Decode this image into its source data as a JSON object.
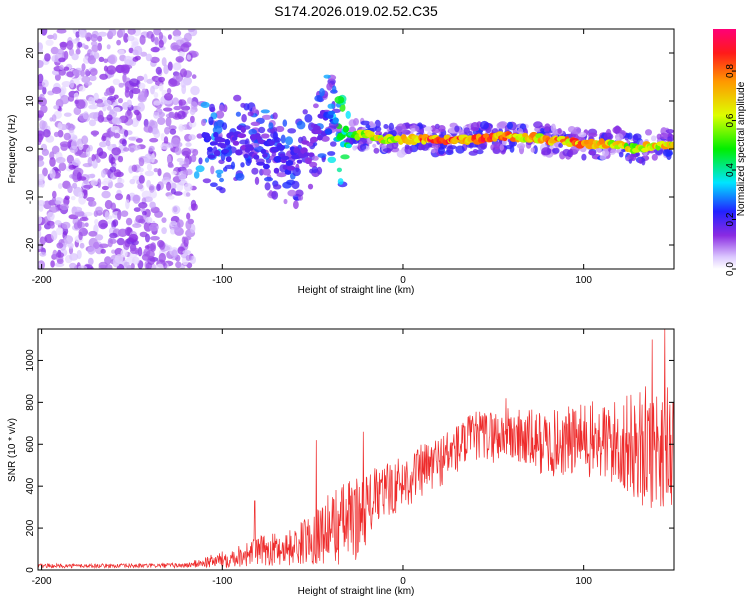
{
  "title": "S174.2026.019.02.52.C35",
  "chart_data": [
    {
      "type": "heatmap",
      "name": "spectrogram",
      "xlabel": "Height of straight line (km)",
      "ylabel": "Frequency (Hz)",
      "xlim": [
        -202,
        150
      ],
      "ylim": [
        -25,
        25
      ],
      "xticks": [
        -200,
        -100,
        0,
        100
      ],
      "yticks": [
        -20,
        -10,
        0,
        10,
        20
      ],
      "colorbar": {
        "label": "Normalized spectral amplitude",
        "range": [
          0,
          0.97
        ],
        "ticks": [
          0.0,
          0.2,
          0.4,
          0.6,
          0.8
        ],
        "tick_labels": [
          "0.0",
          "0.2",
          "0.4",
          "0.6",
          "0.8"
        ]
      },
      "ridge": [
        {
          "x": -110,
          "y": 2,
          "amp": 0.25
        },
        {
          "x": -100,
          "y": 0,
          "amp": 0.22
        },
        {
          "x": -90,
          "y": 2,
          "amp": 0.18
        },
        {
          "x": -80,
          "y": 0,
          "amp": 0.2
        },
        {
          "x": -70,
          "y": -2,
          "amp": 0.22
        },
        {
          "x": -60,
          "y": -3,
          "amp": 0.2
        },
        {
          "x": -50,
          "y": 0,
          "amp": 0.15
        },
        {
          "x": -45,
          "y": 5,
          "amp": 0.2
        },
        {
          "x": -40,
          "y": 7,
          "amp": 0.25
        },
        {
          "x": -35,
          "y": 1,
          "amp": 0.45
        },
        {
          "x": -30,
          "y": 3,
          "amp": 0.45
        },
        {
          "x": -20,
          "y": 3,
          "amp": 0.7
        },
        {
          "x": -10,
          "y": 2,
          "amp": 0.7
        },
        {
          "x": 0,
          "y": 2,
          "amp": 0.75
        },
        {
          "x": 10,
          "y": 2,
          "amp": 0.85
        },
        {
          "x": 20,
          "y": 2,
          "amp": 0.9
        },
        {
          "x": 30,
          "y": 2,
          "amp": 0.85
        },
        {
          "x": 40,
          "y": 2,
          "amp": 0.85
        },
        {
          "x": 50,
          "y": 2.5,
          "amp": 0.9
        },
        {
          "x": 60,
          "y": 2.5,
          "amp": 0.8
        },
        {
          "x": 70,
          "y": 2.5,
          "amp": 0.75
        },
        {
          "x": 80,
          "y": 2,
          "amp": 0.8
        },
        {
          "x": 90,
          "y": 1.5,
          "amp": 0.8
        },
        {
          "x": 100,
          "y": 1,
          "amp": 0.85
        },
        {
          "x": 110,
          "y": 1,
          "amp": 0.75
        },
        {
          "x": 120,
          "y": 1,
          "amp": 0.7
        },
        {
          "x": 130,
          "y": 0,
          "amp": 0.7
        },
        {
          "x": 140,
          "y": 1,
          "amp": 0.75
        },
        {
          "x": 150,
          "y": 1,
          "amp": 0.7
        }
      ],
      "noise_region": {
        "x": [
          -202,
          -115
        ],
        "y": [
          -25,
          25
        ],
        "amp": 0.12
      }
    },
    {
      "type": "line",
      "name": "snr",
      "series": [
        {
          "name": "SNR",
          "color": "#ee2b2b"
        }
      ],
      "xlabel": "Height of straight line (km)",
      "ylabel": "SNR (10 * v/v)",
      "xlim": [
        -202,
        150
      ],
      "ylim": [
        0,
        1150
      ],
      "xticks": [
        -200,
        -100,
        0,
        100
      ],
      "yticks": [
        0,
        200,
        400,
        600,
        800,
        1000
      ],
      "envelope": [
        {
          "x": -202,
          "mean": 20,
          "spread": 10
        },
        {
          "x": -150,
          "mean": 20,
          "spread": 10
        },
        {
          "x": -120,
          "mean": 22,
          "spread": 12
        },
        {
          "x": -100,
          "mean": 50,
          "spread": 40
        },
        {
          "x": -80,
          "mean": 90,
          "spread": 70
        },
        {
          "x": -60,
          "mean": 110,
          "spread": 90
        },
        {
          "x": -45,
          "mean": 180,
          "spread": 150
        },
        {
          "x": -35,
          "mean": 220,
          "spread": 200
        },
        {
          "x": -25,
          "mean": 250,
          "spread": 200
        },
        {
          "x": -15,
          "mean": 350,
          "spread": 140
        },
        {
          "x": 0,
          "mean": 420,
          "spread": 130
        },
        {
          "x": 20,
          "mean": 520,
          "spread": 130
        },
        {
          "x": 40,
          "mean": 640,
          "spread": 120
        },
        {
          "x": 60,
          "mean": 640,
          "spread": 140
        },
        {
          "x": 80,
          "mean": 600,
          "spread": 160
        },
        {
          "x": 100,
          "mean": 620,
          "spread": 180
        },
        {
          "x": 120,
          "mean": 600,
          "spread": 220
        },
        {
          "x": 135,
          "mean": 580,
          "spread": 300
        },
        {
          "x": 150,
          "mean": 600,
          "spread": 300
        }
      ],
      "peaks": [
        {
          "x": -82,
          "y": 330
        },
        {
          "x": -48,
          "y": 620
        },
        {
          "x": -22,
          "y": 660
        },
        {
          "x": 57,
          "y": 820
        },
        {
          "x": 138,
          "y": 1100
        },
        {
          "x": 145,
          "y": 1150
        }
      ]
    }
  ]
}
